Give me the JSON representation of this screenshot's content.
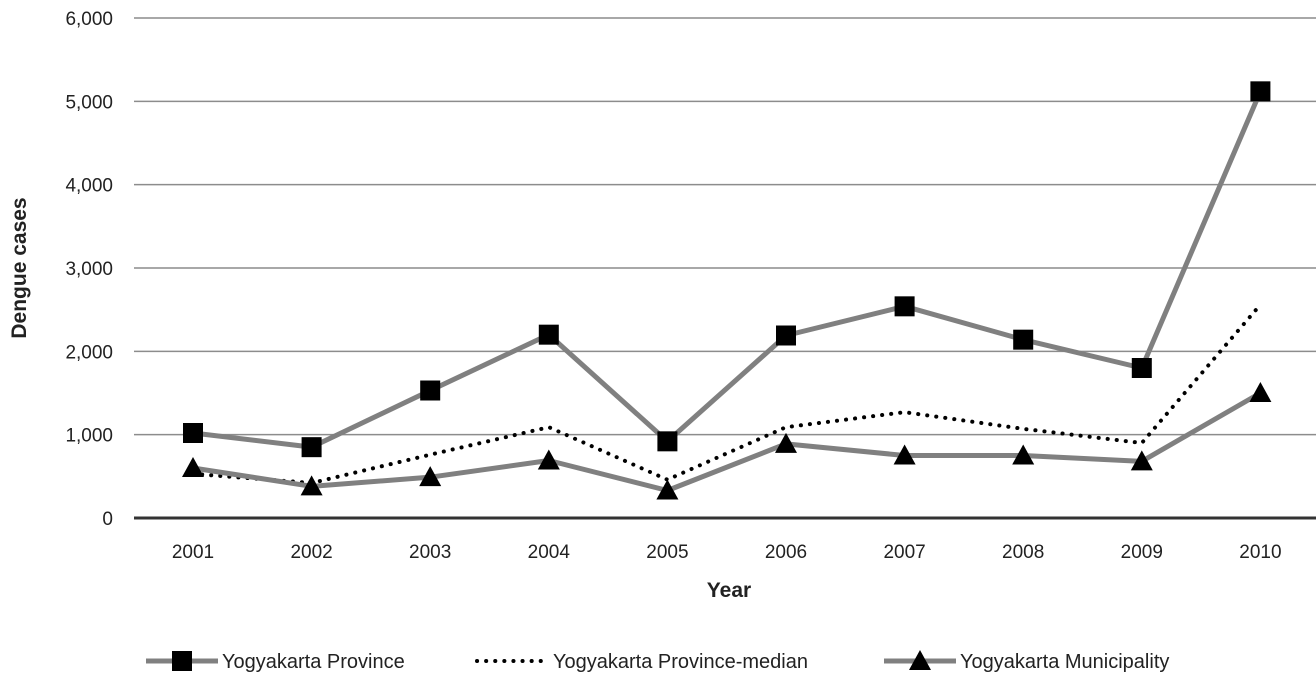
{
  "chart_data": {
    "type": "line",
    "xlabel": "Year",
    "ylabel": "Dengue cases",
    "categories": [
      "2001",
      "2002",
      "2003",
      "2004",
      "2005",
      "2006",
      "2007",
      "2008",
      "2009",
      "2010"
    ],
    "ylim": [
      0,
      6000
    ],
    "yticks": [
      0,
      1000,
      2000,
      3000,
      4000,
      5000,
      6000
    ],
    "ytick_labels": [
      "0",
      "1,000",
      "2,000",
      "3,000",
      "4,000",
      "5,000",
      "6,000"
    ],
    "grid": true,
    "legend_position": "bottom",
    "series": [
      {
        "name": "Yogyakarta Province",
        "values": [
          1020,
          850,
          1530,
          2200,
          920,
          2190,
          2540,
          2140,
          1800,
          5120
        ],
        "color": "#808080",
        "marker": "square",
        "marker_color": "#000000",
        "line_style": "solid"
      },
      {
        "name": "Yogyakarta Province-median",
        "values": [
          530,
          420,
          760,
          1090,
          460,
          1090,
          1270,
          1070,
          900,
          2560
        ],
        "color": "#000000",
        "marker": "none",
        "line_style": "dotted"
      },
      {
        "name": "Yogyakarta Municipality",
        "values": [
          600,
          380,
          490,
          690,
          330,
          890,
          750,
          750,
          680,
          1500
        ],
        "color": "#808080",
        "marker": "triangle",
        "marker_color": "#000000",
        "line_style": "solid"
      }
    ]
  }
}
